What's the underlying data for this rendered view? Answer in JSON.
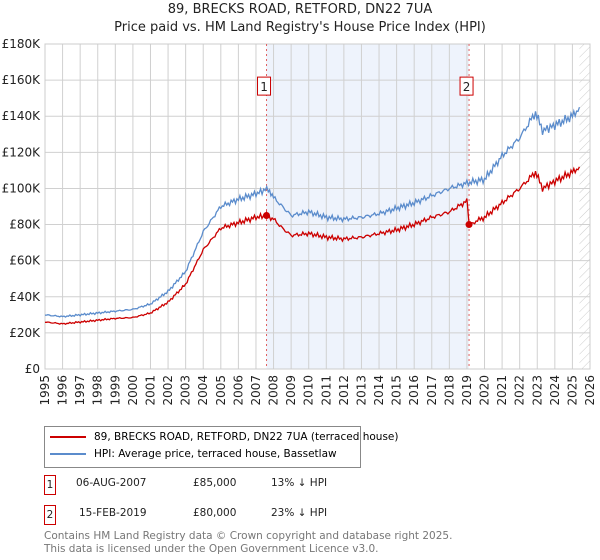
{
  "chart_data": {
    "type": "line",
    "title": "89, BRECKS ROAD, RETFORD, DN22 7UA",
    "subtitle": "Price paid vs. HM Land Registry's House Price Index (HPI)",
    "xlim": [
      1995,
      2026
    ],
    "ylim": [
      0,
      180000
    ],
    "y_ticks": [
      0,
      20000,
      40000,
      60000,
      80000,
      100000,
      120000,
      140000,
      160000,
      180000
    ],
    "y_tick_labels": [
      "£0",
      "£20K",
      "£40K",
      "£60K",
      "£80K",
      "£100K",
      "£120K",
      "£140K",
      "£160K",
      "£180K"
    ],
    "x_ticks": [
      "1995",
      "1996",
      "1997",
      "1998",
      "1999",
      "2000",
      "2001",
      "2002",
      "2003",
      "2004",
      "2005",
      "2006",
      "2007",
      "2008",
      "2009",
      "2010",
      "2011",
      "2012",
      "2013",
      "2014",
      "2015",
      "2016",
      "2017",
      "2018",
      "2019",
      "2020",
      "2021",
      "2022",
      "2023",
      "2024",
      "2025",
      "2026"
    ],
    "grid": true,
    "series": [
      {
        "name": "HPI: Average price, terraced house, Bassetlaw",
        "color": "#5b8ccc",
        "x": [
          1995,
          1996,
          1997,
          1998,
          1999,
          2000,
          2001,
          2002,
          2003,
          2004,
          2005,
          2006,
          2007,
          2007.7,
          2008,
          2008.5,
          2009,
          2010,
          2011,
          2012,
          2013,
          2014,
          2015,
          2016,
          2017,
          2018,
          2019,
          2020,
          2021,
          2022,
          2022.9,
          2023.3,
          2024,
          2025,
          2025.4
        ],
        "y": [
          30000,
          29000,
          30000,
          31000,
          32000,
          33000,
          36000,
          43000,
          54000,
          76000,
          90000,
          94000,
          97000,
          100000,
          95000,
          90000,
          85000,
          87000,
          84000,
          83000,
          84000,
          86000,
          89000,
          92000,
          96000,
          100000,
          103000,
          105000,
          118000,
          128000,
          142000,
          132000,
          135000,
          140000,
          145000
        ]
      },
      {
        "name": "89, BRECKS ROAD, RETFORD, DN22 7UA (terraced house)",
        "color": "#cc0000",
        "x": [
          1995,
          1996,
          1997,
          1998,
          1999,
          2000,
          2001,
          2002,
          2003,
          2004,
          2005,
          2006,
          2007,
          2007.6,
          2008,
          2008.5,
          2009,
          2010,
          2011,
          2012,
          2013,
          2014,
          2015,
          2016,
          2017,
          2018,
          2019.0,
          2019.12,
          2020,
          2021,
          2022,
          2022.9,
          2023.3,
          2024,
          2025,
          2025.4
        ],
        "y": [
          26000,
          25000,
          26000,
          27000,
          28000,
          28500,
          31000,
          37000,
          47000,
          66000,
          78000,
          81000,
          84000,
          85000,
          83000,
          78000,
          74000,
          75000,
          73000,
          72000,
          73000,
          75000,
          77000,
          80000,
          84000,
          87000,
          93000,
          80000,
          84000,
          92000,
          100000,
          109000,
          100000,
          104000,
          109000,
          112000
        ]
      }
    ],
    "sales": [
      {
        "label": "1",
        "x": 2007.6,
        "date": "06-AUG-2007",
        "price": "£85,000",
        "value": 85000,
        "hpi": "13% ↓ HPI"
      },
      {
        "label": "2",
        "x": 2019.12,
        "date": "15-FEB-2019",
        "price": "£80,000",
        "value": 80000,
        "hpi": "23% ↓ HPI"
      }
    ]
  },
  "legend": {
    "red": "89, BRECKS ROAD, RETFORD, DN22 7UA (terraced house)",
    "blue": "HPI: Average price, terraced house, Bassetlaw"
  },
  "footer": {
    "line1": "Contains HM Land Registry data © Crown copyright and database right 2025.",
    "line2": "This data is licensed under the Open Government Licence v3.0."
  }
}
